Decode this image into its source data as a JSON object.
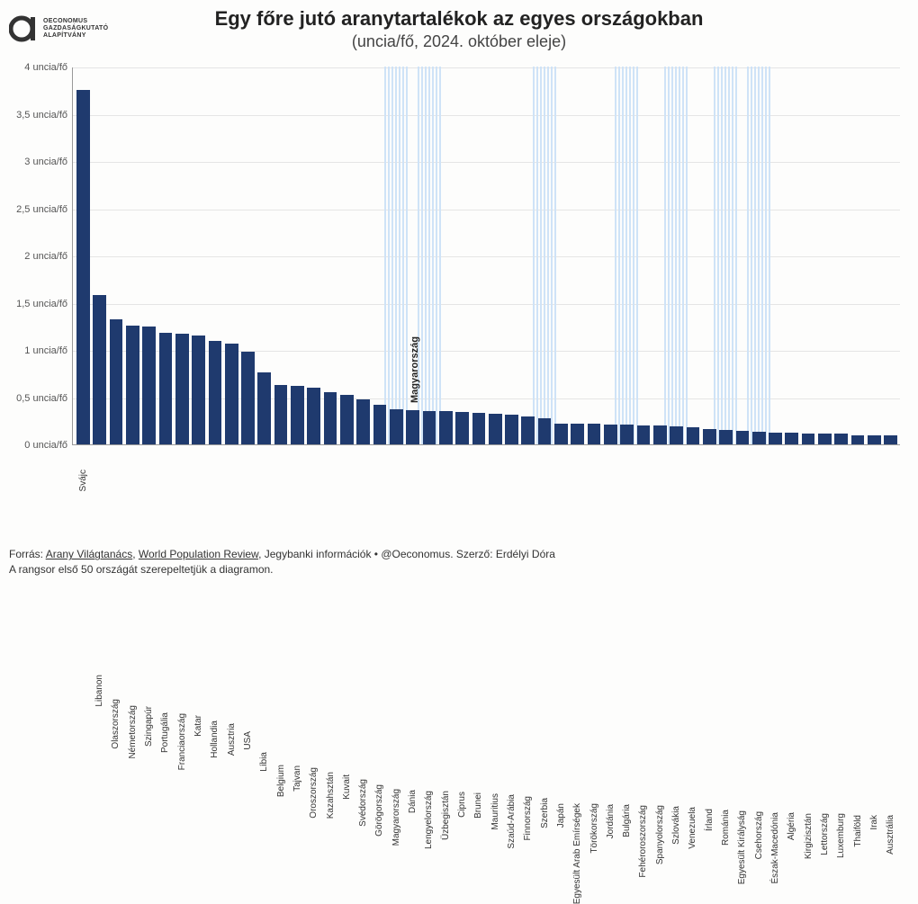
{
  "logo": {
    "line1": "Oeconomus",
    "line2": "Gazdaságkutató",
    "line3": "Alapítvány"
  },
  "title": "Egy főre jutó aranytartalékok az egyes országokban",
  "subtitle": "(uncia/fő, 2024. október eleje)",
  "chart": {
    "type": "bar",
    "ylim": [
      0,
      4
    ],
    "ytick_step": 0.5,
    "ytick_suffix": " uncia/fő",
    "bar_color": "#1f3a6e",
    "highlight_stripe_color": "#cfe3f7",
    "grid_color": "#e5e5e5",
    "axis_color": "#999999",
    "background_color": "#fdfdfc",
    "callout": {
      "label": "Magyarország",
      "index": 20
    },
    "countries": [
      {
        "name": "Svájc",
        "value": 3.75,
        "hl": false
      },
      {
        "name": "Libanon",
        "value": 1.58,
        "hl": false
      },
      {
        "name": "Olaszország",
        "value": 1.32,
        "hl": false
      },
      {
        "name": "Németország",
        "value": 1.26,
        "hl": false
      },
      {
        "name": "Szingapúr",
        "value": 1.25,
        "hl": false
      },
      {
        "name": "Portugália",
        "value": 1.18,
        "hl": false
      },
      {
        "name": "Franciaország",
        "value": 1.17,
        "hl": false
      },
      {
        "name": "Katar",
        "value": 1.15,
        "hl": false
      },
      {
        "name": "Hollandia",
        "value": 1.1,
        "hl": false
      },
      {
        "name": "Ausztria",
        "value": 1.07,
        "hl": false
      },
      {
        "name": "USA",
        "value": 0.98,
        "hl": false
      },
      {
        "name": "Líbia",
        "value": 0.76,
        "hl": false
      },
      {
        "name": "Belgium",
        "value": 0.63,
        "hl": false
      },
      {
        "name": "Tajvan",
        "value": 0.62,
        "hl": false
      },
      {
        "name": "Oroszország",
        "value": 0.6,
        "hl": false
      },
      {
        "name": "Kazahsztán",
        "value": 0.55,
        "hl": false
      },
      {
        "name": "Kuvait",
        "value": 0.52,
        "hl": false
      },
      {
        "name": "Svédország",
        "value": 0.48,
        "hl": false
      },
      {
        "name": "Görögország",
        "value": 0.42,
        "hl": false
      },
      {
        "name": "Magyarország",
        "value": 0.37,
        "hl": true
      },
      {
        "name": "Dánia",
        "value": 0.36,
        "hl": false
      },
      {
        "name": "Lengyelország",
        "value": 0.35,
        "hl": true
      },
      {
        "name": "Üzbegisztán",
        "value": 0.35,
        "hl": false
      },
      {
        "name": "Ciprus",
        "value": 0.34,
        "hl": false
      },
      {
        "name": "Brunei",
        "value": 0.33,
        "hl": false
      },
      {
        "name": "Mauritius",
        "value": 0.32,
        "hl": false
      },
      {
        "name": "Szaúd-Arábia",
        "value": 0.31,
        "hl": false
      },
      {
        "name": "Finnország",
        "value": 0.3,
        "hl": false
      },
      {
        "name": "Szerbia",
        "value": 0.28,
        "hl": true
      },
      {
        "name": "Japán",
        "value": 0.22,
        "hl": false
      },
      {
        "name": "Egyesült Arab Emírségek",
        "value": 0.22,
        "hl": false
      },
      {
        "name": "Törökország",
        "value": 0.22,
        "hl": false
      },
      {
        "name": "Jordánia",
        "value": 0.21,
        "hl": false
      },
      {
        "name": "Bulgária",
        "value": 0.21,
        "hl": true
      },
      {
        "name": "Fehéroroszország",
        "value": 0.2,
        "hl": false
      },
      {
        "name": "Spanyolország",
        "value": 0.2,
        "hl": false
      },
      {
        "name": "Szlovákia",
        "value": 0.19,
        "hl": true
      },
      {
        "name": "Venezuela",
        "value": 0.18,
        "hl": false
      },
      {
        "name": "Írland",
        "value": 0.16,
        "hl": false
      },
      {
        "name": "Románia",
        "value": 0.15,
        "hl": true
      },
      {
        "name": "Egyesült Királyság",
        "value": 0.14,
        "hl": false
      },
      {
        "name": "Csehország",
        "value": 0.13,
        "hl": true
      },
      {
        "name": "Észak-Macedónia",
        "value": 0.12,
        "hl": false
      },
      {
        "name": "Algéria",
        "value": 0.12,
        "hl": false
      },
      {
        "name": "Kirgizisztán",
        "value": 0.11,
        "hl": false
      },
      {
        "name": "Lettország",
        "value": 0.11,
        "hl": false
      },
      {
        "name": "Luxemburg",
        "value": 0.11,
        "hl": false
      },
      {
        "name": "Thaiföld",
        "value": 0.1,
        "hl": false
      },
      {
        "name": "Irak",
        "value": 0.1,
        "hl": false
      },
      {
        "name": "Ausztrália",
        "value": 0.1,
        "hl": false
      }
    ]
  },
  "footer": {
    "source_label": "Forrás: ",
    "source1": "Arany Világtanács",
    "sep1": ", ",
    "source2": "World Population Review",
    "rest": ", Jegybanki információk • @Oeconomus. Szerző: Erdélyi Dóra",
    "note": "A rangsor első 50 országát szerepeltetjük a diagramon."
  }
}
